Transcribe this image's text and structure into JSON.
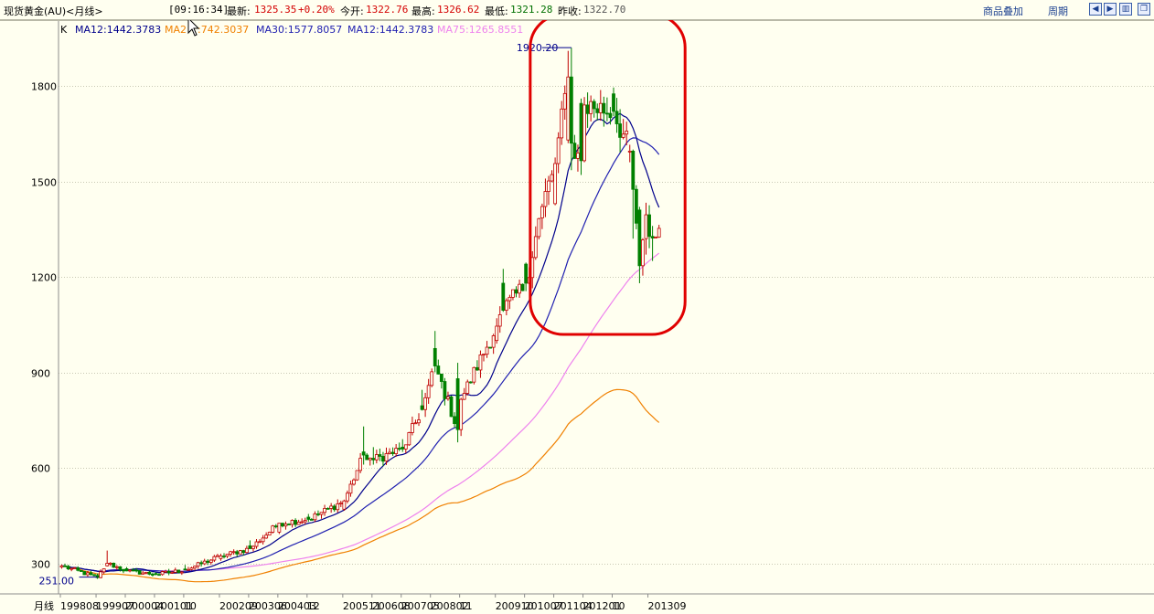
{
  "header": {
    "title": "现货黄金(AU)<月线>",
    "time": "[09:16:34]",
    "latest_label": "最新:",
    "latest_value": "1325.35",
    "change": "+0.20%",
    "open_label": "今开:",
    "open_value": "1322.76",
    "high_label": "最高:",
    "high_value": "1326.62",
    "low_label": "最低:",
    "low_value": "1321.28",
    "prev_close_label": "昨收:",
    "prev_close_value": "1322.70",
    "overlay_button": "商品叠加",
    "period_button": "周期",
    "nav_icons": [
      "arrow-left-icon",
      "arrow-right-icon",
      "window-split-icon",
      "window-restore-icon"
    ]
  },
  "legend": {
    "k_label": "K",
    "ma12_a": "MA12:1442.3783",
    "ma24_prefix": "MA2",
    "ma24_suffix": ":742.3037",
    "ma30": "MA30:1577.8057",
    "ma12_b": "MA12:1442.3783",
    "ma75": "MA75:1265.8551"
  },
  "colors": {
    "up": "#c00000",
    "down": "#008000",
    "ma12": "#00008b",
    "ma24": "#f08000",
    "ma30": "#2020b0",
    "ma75": "#ee82ee",
    "highlight": "#e00000",
    "background": "#fffff0"
  },
  "chart_data": {
    "type": "candlestick",
    "title": "现货黄金(AU)<月线>",
    "period": "月线",
    "ylim": [
      240,
      1980
    ],
    "yticks": [
      300,
      600,
      900,
      1200,
      1500,
      1800
    ],
    "x_tick_labels": [
      "199808",
      "199907",
      "200004",
      "200101",
      "10",
      "200209",
      "200306",
      "200403",
      "12",
      "200511",
      "200608",
      "200705",
      "200802",
      "11",
      "200910",
      "201007",
      "201104",
      "201201",
      "10",
      "201309"
    ],
    "start_month": "1998-08",
    "end_month": "2013-12",
    "annotations": [
      {
        "text": "1920.20",
        "x": "2011-09",
        "y": 1920.2
      },
      {
        "text": "251.00",
        "x": "1999-07",
        "y": 251
      }
    ],
    "highlight_region": {
      "from": "2010-11",
      "to": "2013-12",
      "label": ""
    },
    "ohlc_anchors": [
      [
        "1998-08",
        288,
        296,
        283,
        292
      ],
      [
        "1999-07",
        262,
        268,
        251,
        255
      ],
      [
        "1999-10",
        292,
        340,
        290,
        300
      ],
      [
        "2000-04",
        283,
        288,
        275,
        276
      ],
      [
        "2001-01",
        268,
        272,
        262,
        265
      ],
      [
        "2001-10",
        282,
        295,
        278,
        279
      ],
      [
        "2002-09",
        315,
        330,
        308,
        323
      ],
      [
        "2003-06",
        355,
        372,
        345,
        346
      ],
      [
        "2004-03",
        398,
        425,
        392,
        426
      ],
      [
        "2004-12",
        445,
        455,
        430,
        438
      ],
      [
        "2005-11",
        470,
        500,
        465,
        496
      ],
      [
        "2006-05",
        650,
        730,
        610,
        640
      ],
      [
        "2006-08",
        630,
        665,
        610,
        625
      ],
      [
        "2007-05",
        665,
        690,
        650,
        659
      ],
      [
        "2007-11",
        795,
        845,
        780,
        783
      ],
      [
        "2008-03",
        975,
        1030,
        900,
        920
      ],
      [
        "2008-10",
        880,
        930,
        680,
        720
      ],
      [
        "2008-11",
        720,
        820,
        700,
        815
      ],
      [
        "2009-10",
        1000,
        1070,
        990,
        1045
      ],
      [
        "2009-12",
        1180,
        1225,
        1090,
        1095
      ],
      [
        "2010-07",
        1240,
        1245,
        1155,
        1180
      ],
      [
        "2010-12",
        1385,
        1430,
        1350,
        1421
      ],
      [
        "2011-04",
        1430,
        1575,
        1425,
        1556
      ],
      [
        "2011-08",
        1630,
        1910,
        1620,
        1828
      ],
      [
        "2011-09",
        1828,
        1920,
        1535,
        1620
      ],
      [
        "2011-12",
        1745,
        1760,
        1520,
        1565
      ],
      [
        "2012-01",
        1565,
        1765,
        1560,
        1740
      ],
      [
        "2012-10",
        1775,
        1795,
        1705,
        1720
      ],
      [
        "2013-03",
        1595,
        1615,
        1560,
        1595
      ],
      [
        "2013-04",
        1595,
        1600,
        1320,
        1475
      ],
      [
        "2013-06",
        1410,
        1420,
        1180,
        1235
      ],
      [
        "2013-08",
        1320,
        1433,
        1270,
        1395
      ],
      [
        "2013-09",
        1395,
        1425,
        1290,
        1327
      ],
      [
        "2013-10",
        1327,
        1360,
        1250,
        1322
      ],
      [
        "2013-11",
        1322,
        1327,
        1321,
        1325
      ]
    ],
    "series": [
      {
        "name": "MA12",
        "last": 1442.3783
      },
      {
        "name": "MA24",
        "last": 742.3037
      },
      {
        "name": "MA30",
        "last": 1577.8057
      },
      {
        "name": "MA75",
        "last": 1265.8551
      }
    ]
  }
}
